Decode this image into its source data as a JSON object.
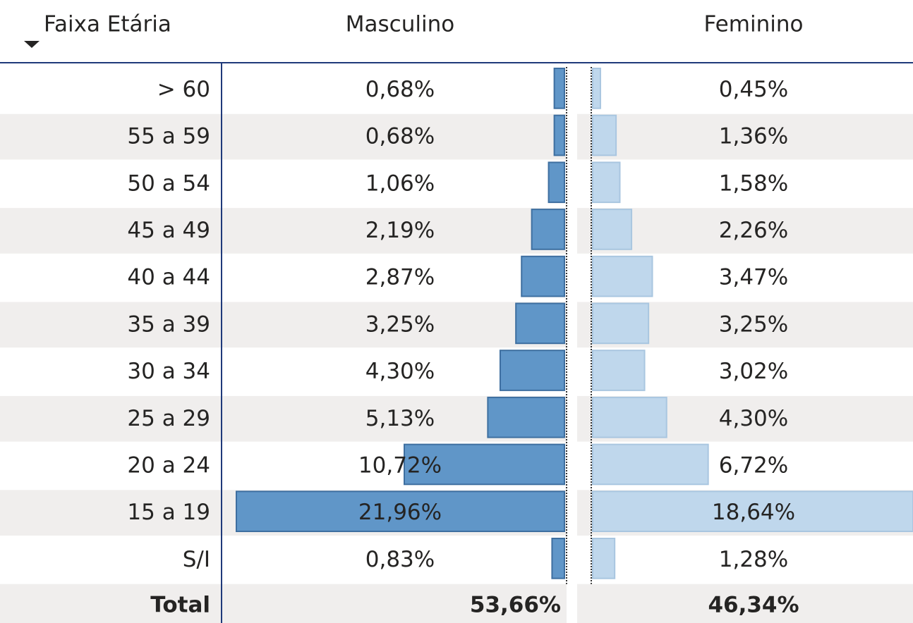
{
  "table": {
    "headers": [
      "Faixa Etária",
      "Masculino",
      "Feminino"
    ],
    "categories": [
      "> 60",
      "55 a 59",
      "50 a 54",
      "45 a 49",
      "40 a 44",
      "35 a 39",
      "30 a 34",
      "25 a 29",
      "20 a 24",
      "15 a 19",
      "S/I"
    ],
    "series": [
      {
        "name": "Masculino",
        "color": "#6096c8",
        "border": "#3e6fa0",
        "values": [
          0.68,
          0.68,
          1.06,
          2.19,
          2.87,
          3.25,
          4.3,
          5.13,
          10.72,
          21.96,
          0.83
        ],
        "value_labels": [
          "0,68%",
          "0,68%",
          "1,06%",
          "2,19%",
          "2,87%",
          "3,25%",
          "4,30%",
          "5,13%",
          "10,72%",
          "21,96%",
          "0,83%"
        ]
      },
      {
        "name": "Feminino",
        "color": "#bfd7ec",
        "border": "#a9c6e0",
        "values": [
          0.45,
          1.36,
          1.58,
          2.26,
          3.47,
          3.25,
          3.02,
          4.3,
          6.72,
          18.64,
          1.28
        ],
        "value_labels": [
          "0,45%",
          "1,36%",
          "1,58%",
          "2,26%",
          "3,47%",
          "3,25%",
          "3,02%",
          "4,30%",
          "6,72%",
          "18,64%",
          "1,28%"
        ]
      }
    ],
    "total_label": "Total",
    "totals": [
      53.66,
      46.34
    ],
    "total_labels": [
      "53,66%",
      "46,34%"
    ]
  }
}
